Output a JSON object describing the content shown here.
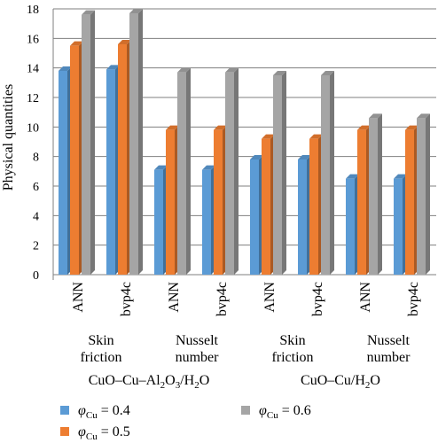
{
  "chart_data": {
    "type": "bar",
    "ylabel": "Physical quantities",
    "ylim": [
      0,
      18
    ],
    "yticks": [
      0,
      2,
      4,
      6,
      8,
      10,
      12,
      14,
      16,
      18
    ],
    "grid": true,
    "categories": [
      "ANN",
      "bvp4c",
      "ANN",
      "bvp4c",
      "ANN",
      "bvp4c",
      "ANN",
      "bvp4c"
    ],
    "quantity_groups": [
      {
        "line1": "Skin",
        "line2": "friction"
      },
      {
        "line1": "Nusselt",
        "line2": "number"
      },
      {
        "line1": "Skin",
        "line2": "friction"
      },
      {
        "line1": "Nusselt",
        "line2": "number"
      }
    ],
    "fluid_groups": [
      {
        "parts": [
          "CuO–Cu–Al",
          "2",
          "O",
          "3",
          "/H",
          "2",
          "O"
        ]
      },
      {
        "parts": [
          "CuO–Cu/H",
          "2",
          "O"
        ]
      }
    ],
    "legend_position": "bottom",
    "series": [
      {
        "symbol": "φ",
        "subscript": "Cu",
        "value_text": "= 0.4",
        "color": "#5b9bd5",
        "values": [
          13.8,
          13.9,
          7.1,
          7.1,
          7.8,
          7.8,
          6.5,
          6.5
        ]
      },
      {
        "symbol": "φ",
        "subscript": "Cu",
        "value_text": "= 0.5",
        "color": "#ed7d31",
        "values": [
          15.5,
          15.6,
          9.8,
          9.8,
          9.2,
          9.2,
          9.8,
          9.8
        ]
      },
      {
        "symbol": "φ",
        "subscript": "Cu",
        "value_text": "= 0.6",
        "color": "#a5a5a5",
        "values": [
          17.6,
          17.7,
          13.7,
          13.7,
          13.5,
          13.5,
          10.6,
          10.6
        ]
      }
    ]
  }
}
